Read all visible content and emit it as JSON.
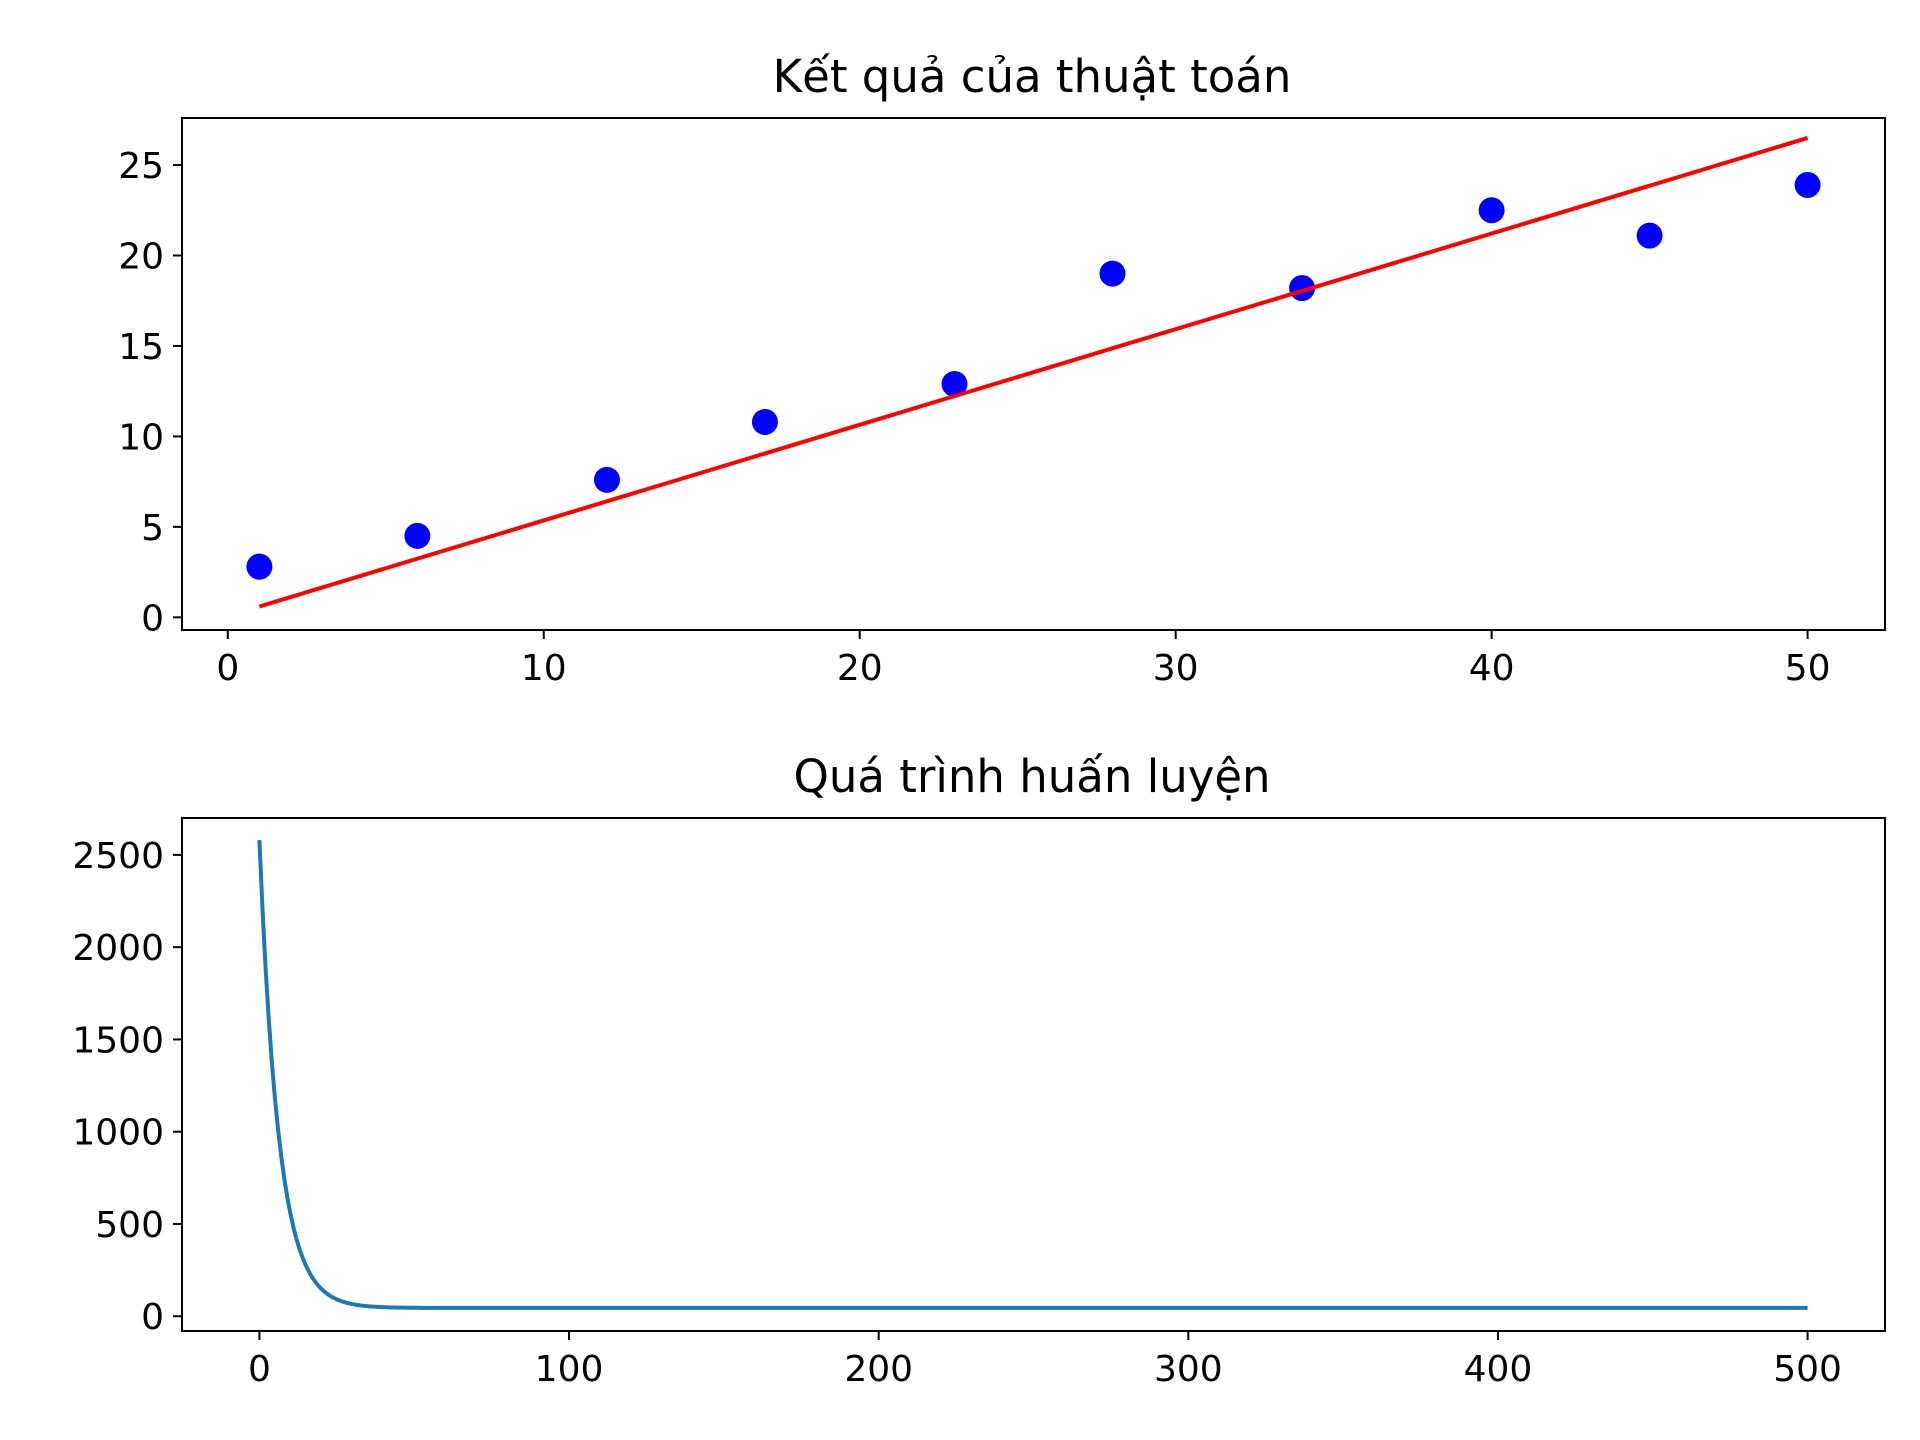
{
  "chart_data": [
    {
      "type": "scatter",
      "title": "Kết quả của thuật toán",
      "xlabel": "",
      "ylabel": "",
      "xlim": [
        -1.45,
        52.45
      ],
      "ylim": [
        -0.7,
        27.6
      ],
      "xticks": [
        0,
        10,
        20,
        30,
        40,
        50
      ],
      "yticks": [
        0,
        5,
        10,
        15,
        20,
        25
      ],
      "grid": false,
      "series": [
        {
          "kind": "scatter",
          "color": "#0000ff",
          "x": [
            1,
            6,
            12,
            17,
            23,
            28,
            34,
            40,
            45,
            50
          ],
          "y": [
            2.8,
            4.5,
            7.6,
            10.8,
            12.9,
            19.0,
            18.2,
            22.5,
            21.1,
            23.9
          ]
        },
        {
          "kind": "line",
          "color": "#ff0000",
          "x": [
            1,
            50
          ],
          "y": [
            0.6,
            26.5
          ]
        }
      ]
    },
    {
      "type": "line",
      "title": "Quá trình huấn luyện",
      "xlabel": "",
      "ylabel": "",
      "xlim": [
        -25,
        525
      ],
      "ylim": [
        -80,
        2700
      ],
      "xticks": [
        0,
        100,
        200,
        300,
        400,
        500
      ],
      "yticks": [
        0,
        500,
        1000,
        1500,
        2000,
        2500
      ],
      "grid": false,
      "series": [
        {
          "kind": "line",
          "color": "#1f77b4",
          "curve": {
            "start": 2580,
            "floor": 45,
            "decay": 0.16,
            "n": 500
          }
        }
      ]
    }
  ]
}
